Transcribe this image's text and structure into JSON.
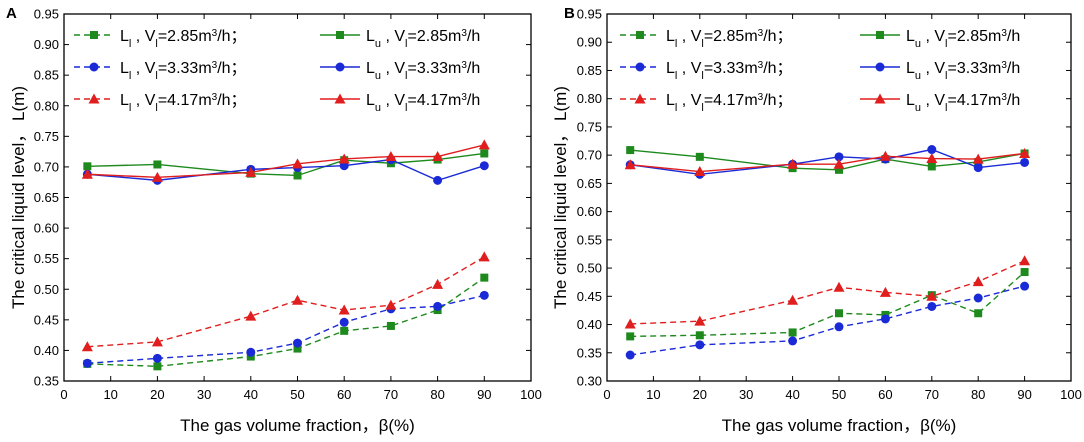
{
  "chart_data": [
    {
      "panel": "A",
      "type": "line",
      "xlabel": "The gas volume fraction，β(%)",
      "ylabel": "The critical liquid level， L(m)",
      "xlim": [
        0,
        100
      ],
      "ylim": [
        0.35,
        0.95
      ],
      "xticks": [
        0,
        10,
        20,
        30,
        40,
        50,
        60,
        70,
        80,
        90,
        100
      ],
      "yticks": [
        0.35,
        0.4,
        0.45,
        0.5,
        0.55,
        0.6,
        0.65,
        0.7,
        0.75,
        0.8,
        0.85,
        0.9,
        0.95
      ],
      "x": [
        5,
        20,
        40,
        50,
        60,
        70,
        80,
        90
      ],
      "series": [
        {
          "id": "ll-285",
          "name": "L_l , V_l=2.85m3/h",
          "values": [
            0.378,
            0.374,
            0.39,
            0.403,
            0.432,
            0.44,
            0.466,
            0.519
          ],
          "color": "#1e8a1e",
          "dashed": true,
          "marker": "square"
        },
        {
          "id": "ll-333",
          "name": "L_l , V_l=3.33m3/h",
          "values": [
            0.379,
            0.387,
            0.397,
            0.412,
            0.446,
            0.468,
            0.472,
            0.49
          ],
          "color": "#1a2ad6",
          "dashed": true,
          "marker": "circle"
        },
        {
          "id": "ll-417",
          "name": "L_l , V_l=4.17m3/h",
          "values": [
            0.406,
            0.414,
            0.456,
            0.482,
            0.466,
            0.474,
            0.508,
            0.553
          ],
          "color": "#e01e1e",
          "dashed": true,
          "marker": "triangle"
        },
        {
          "id": "lu-285",
          "name": "L_u , V_l=2.85m3/h",
          "values": [
            0.701,
            0.704,
            0.689,
            0.686,
            0.711,
            0.706,
            0.712,
            0.722
          ],
          "color": "#1e8a1e",
          "dashed": false,
          "marker": "square"
        },
        {
          "id": "lu-333",
          "name": "L_u , V_l=3.33m3/h",
          "values": [
            0.688,
            0.678,
            0.696,
            0.699,
            0.702,
            0.712,
            0.678,
            0.702
          ],
          "color": "#1a2ad6",
          "dashed": false,
          "marker": "circle"
        },
        {
          "id": "lu-417",
          "name": "L_u , V_l=4.17m3/h",
          "values": [
            0.688,
            0.683,
            0.691,
            0.705,
            0.713,
            0.717,
            0.717,
            0.736
          ],
          "color": "#e01e1e",
          "dashed": false,
          "marker": "triangle"
        }
      ]
    },
    {
      "panel": "B",
      "type": "line",
      "xlabel": "The gas volume fraction，β(%)",
      "ylabel": "The critical liquid level， L(m)",
      "xlim": [
        0,
        100
      ],
      "ylim": [
        0.3,
        0.95
      ],
      "xticks": [
        0,
        10,
        20,
        30,
        40,
        50,
        60,
        70,
        80,
        90,
        100
      ],
      "yticks": [
        0.3,
        0.35,
        0.4,
        0.45,
        0.5,
        0.55,
        0.6,
        0.65,
        0.7,
        0.75,
        0.8,
        0.85,
        0.9,
        0.95
      ],
      "x": [
        5,
        20,
        40,
        50,
        60,
        70,
        80,
        90
      ],
      "series": [
        {
          "id": "ll-285",
          "name": "L_l , V_l=2.85m3/h",
          "values": [
            0.379,
            0.381,
            0.386,
            0.42,
            0.417,
            0.452,
            0.42,
            0.493
          ],
          "color": "#1e8a1e",
          "dashed": true,
          "marker": "square"
        },
        {
          "id": "ll-333",
          "name": "L_l , V_l=3.33m3/h",
          "values": [
            0.346,
            0.364,
            0.371,
            0.396,
            0.41,
            0.432,
            0.447,
            0.468
          ],
          "color": "#1a2ad6",
          "dashed": true,
          "marker": "circle"
        },
        {
          "id": "ll-417",
          "name": "L_l , V_l=4.17m3/h",
          "values": [
            0.401,
            0.406,
            0.443,
            0.466,
            0.457,
            0.45,
            0.476,
            0.513
          ],
          "color": "#e01e1e",
          "dashed": true,
          "marker": "triangle"
        },
        {
          "id": "lu-285",
          "name": "L_u , V_l=2.85m3/h",
          "values": [
            0.709,
            0.697,
            0.677,
            0.674,
            0.693,
            0.68,
            0.688,
            0.703
          ],
          "color": "#1e8a1e",
          "dashed": false,
          "marker": "square"
        },
        {
          "id": "lu-333",
          "name": "L_u , V_l=3.33m3/h",
          "values": [
            0.683,
            0.666,
            0.684,
            0.697,
            0.693,
            0.71,
            0.678,
            0.687
          ],
          "color": "#1a2ad6",
          "dashed": false,
          "marker": "circle"
        },
        {
          "id": "lu-417",
          "name": "L_u , V_l=4.17m3/h",
          "values": [
            0.683,
            0.671,
            0.684,
            0.684,
            0.698,
            0.694,
            0.693,
            0.703
          ],
          "color": "#e01e1e",
          "dashed": false,
          "marker": "triangle"
        }
      ]
    }
  ]
}
